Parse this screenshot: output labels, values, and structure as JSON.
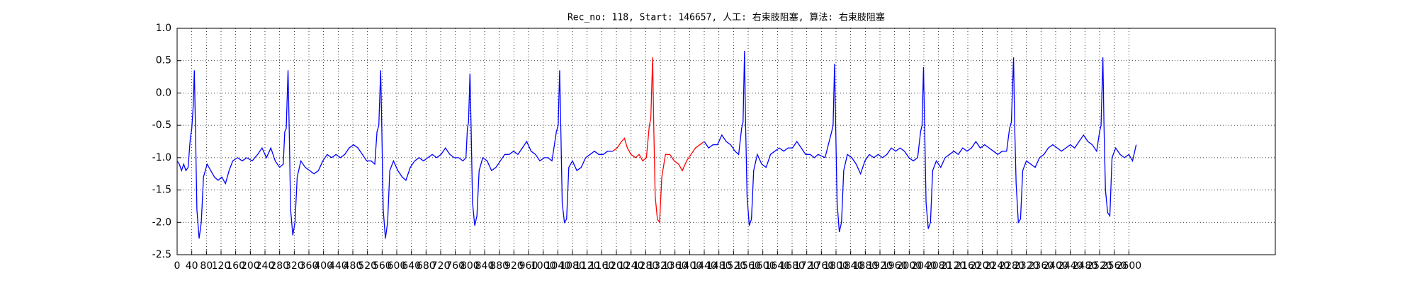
{
  "chart_data": {
    "type": "line",
    "title": "Rec_no: 118, Start: 146657, 人工: 右束肢阻塞, 算法: 右束肢阻塞",
    "xlim": [
      0,
      3000
    ],
    "xticks": [
      0,
      40,
      80,
      120,
      160,
      200,
      240,
      280,
      320,
      360,
      400,
      440,
      480,
      520,
      560,
      600,
      640,
      680,
      720,
      760,
      800,
      840,
      880,
      920,
      960,
      1000,
      1040,
      1080,
      1120,
      1160,
      1200,
      1240,
      1280,
      1320,
      1360,
      1400,
      1440,
      1480,
      1520,
      1560,
      1600,
      1640,
      1680,
      1720,
      1760,
      1800,
      1840,
      1880,
      1920,
      1960,
      2000,
      2040,
      2080,
      2120,
      2160,
      2200,
      2240,
      2280,
      2320,
      2360,
      2400,
      2440,
      2480,
      2520,
      2560,
      2600
    ],
    "ylim": [
      -2.5,
      1.0
    ],
    "yticks": [
      {
        "value": -2.5,
        "label": "-2.5"
      },
      {
        "value": -2,
        "label": "-2.0"
      },
      -1.5,
      {
        "value": -1,
        "label": "-1.0"
      },
      -0.5,
      {
        "value": 0,
        "label": "0.0"
      },
      0.5,
      {
        "value": 1,
        "label": "1.0"
      }
    ],
    "grid": true,
    "series": [
      {
        "color": "#0000ff",
        "x": [
          0,
          6,
          12,
          18,
          24,
          30,
          36,
          40,
          44,
          47,
          50,
          54,
          60,
          66,
          72,
          82,
          92,
          102,
          112,
          122,
          132,
          142,
          152,
          165,
          178,
          190,
          205,
          220,
          232,
          244,
          256,
          268,
          280,
          290,
          294,
          298,
          303,
          306,
          310,
          316,
          322,
          328,
          338,
          350,
          362,
          374,
          386,
          398,
          410,
          422,
          434,
          446,
          458,
          470,
          482,
          494,
          506,
          518,
          530,
          540,
          546,
          551,
          556,
          559,
          563,
          569,
          575,
          581,
          591,
          603,
          615,
          625,
          637,
          649,
          661,
          673,
          685,
          697,
          709,
          721,
          733,
          745,
          757,
          769,
          781,
          789,
          793,
          796,
          800,
          803,
          807,
          813,
          819,
          825,
          835,
          847,
          859,
          871,
          883,
          895,
          907,
          919,
          931,
          943,
          955,
          967,
          979,
          991,
          1003,
          1013,
          1024,
          1036,
          1041,
          1045,
          1048,
          1052,
          1058,
          1064,
          1070,
          1080,
          1092,
          1104,
          1116,
          1128,
          1140,
          1152,
          1164,
          1176,
          1190
        ],
        "values": [
          -1.05,
          -1.1,
          -1.2,
          -1.1,
          -1.2,
          -1.15,
          -0.7,
          -0.55,
          -0.2,
          0.35,
          -0.5,
          -1.8,
          -2.25,
          -2.0,
          -1.3,
          -1.1,
          -1.2,
          -1.3,
          -1.35,
          -1.3,
          -1.4,
          -1.2,
          -1.05,
          -1.0,
          -1.05,
          -1.0,
          -1.05,
          -0.95,
          -0.85,
          -1.0,
          -0.85,
          -1.05,
          -1.15,
          -1.1,
          -0.6,
          -0.55,
          0.35,
          -0.5,
          -1.8,
          -2.2,
          -2.0,
          -1.3,
          -1.05,
          -1.15,
          -1.2,
          -1.25,
          -1.2,
          -1.05,
          -0.95,
          -1.0,
          -0.95,
          -1.0,
          -0.95,
          -0.85,
          -0.8,
          -0.85,
          -0.95,
          -1.05,
          -1.05,
          -1.1,
          -0.6,
          -0.5,
          0.35,
          -0.5,
          -1.8,
          -2.25,
          -2.0,
          -1.2,
          -1.05,
          -1.2,
          -1.3,
          -1.35,
          -1.15,
          -1.05,
          -1.0,
          -1.05,
          -1.0,
          -0.95,
          -1.0,
          -0.95,
          -0.85,
          -0.95,
          -1.0,
          -1.0,
          -1.05,
          -1.0,
          -0.55,
          -0.45,
          0.3,
          -0.5,
          -1.7,
          -2.05,
          -1.9,
          -1.2,
          -1.0,
          -1.05,
          -1.2,
          -1.15,
          -1.05,
          -0.95,
          -0.95,
          -0.9,
          -0.95,
          -0.85,
          -0.75,
          -0.9,
          -0.95,
          -1.05,
          -1.0,
          -1.0,
          -1.05,
          -0.6,
          -0.5,
          0.35,
          -0.5,
          -1.7,
          -2.0,
          -1.95,
          -1.15,
          -1.05,
          -1.2,
          -1.15,
          -1.0,
          -0.95,
          -0.9,
          -0.95,
          -0.95,
          -0.9,
          -0.9
        ]
      },
      {
        "color": "#ff0000",
        "x": [
          1190,
          1202,
          1214,
          1222,
          1230,
          1240,
          1252,
          1262,
          1272,
          1282,
          1290,
          1294,
          1299,
          1302,
          1306,
          1312,
          1318,
          1324,
          1334,
          1346,
          1358,
          1370,
          1380,
          1392,
          1404,
          1416,
          1428,
          1440
        ],
        "values": [
          -0.9,
          -0.85,
          -0.75,
          -0.7,
          -0.85,
          -0.95,
          -1.0,
          -0.95,
          -1.05,
          -1.0,
          -0.5,
          -0.4,
          0.55,
          -0.5,
          -1.6,
          -1.95,
          -2.0,
          -1.3,
          -0.95,
          -0.95,
          -1.05,
          -1.1,
          -1.2,
          -1.05,
          -0.95,
          -0.85,
          -0.8,
          -0.75
        ]
      },
      {
        "color": "#0000ff",
        "x": [
          1440,
          1452,
          1464,
          1476,
          1488,
          1500,
          1512,
          1524,
          1534,
          1542,
          1546,
          1550,
          1553,
          1557,
          1563,
          1569,
          1575,
          1585,
          1597,
          1609,
          1621,
          1633,
          1645,
          1657,
          1669,
          1681,
          1693,
          1705,
          1717,
          1729,
          1741,
          1751,
          1770,
          1788,
          1792,
          1796,
          1799,
          1803,
          1809,
          1815,
          1821,
          1831,
          1843,
          1855,
          1867,
          1879,
          1891,
          1903,
          1915,
          1927,
          1939,
          1951,
          1963,
          1975,
          1987,
          1999,
          2011,
          2023,
          2031,
          2035,
          2039,
          2042,
          2046,
          2052,
          2058,
          2064,
          2074,
          2086,
          2098,
          2110,
          2122,
          2134,
          2146,
          2158,
          2170,
          2182,
          2194,
          2206,
          2218,
          2230,
          2242,
          2254,
          2266,
          2274,
          2279,
          2285,
          2288,
          2292,
          2298,
          2304,
          2310,
          2320,
          2332,
          2344,
          2356,
          2368,
          2380,
          2392,
          2404,
          2416,
          2428,
          2440,
          2452,
          2464,
          2476,
          2488,
          2500,
          2512,
          2520,
          2524,
          2529,
          2532,
          2536,
          2542,
          2548,
          2554,
          2564,
          2576,
          2588,
          2600,
          2610,
          2620
        ],
        "values": [
          -0.75,
          -0.85,
          -0.8,
          -0.8,
          -0.65,
          -0.75,
          -0.8,
          -0.9,
          -0.95,
          -0.55,
          -0.45,
          0.65,
          -0.5,
          -1.6,
          -2.05,
          -1.95,
          -1.2,
          -0.95,
          -1.1,
          -1.15,
          -0.95,
          -0.9,
          -0.85,
          -0.9,
          -0.85,
          -0.85,
          -0.75,
          -0.85,
          -0.95,
          -0.95,
          -1.0,
          -0.95,
          -1.0,
          -0.6,
          -0.5,
          0.45,
          -0.5,
          -1.7,
          -2.15,
          -2.0,
          -1.2,
          -0.95,
          -1.0,
          -1.1,
          -1.25,
          -1.05,
          -0.95,
          -1.0,
          -0.95,
          -1.0,
          -0.95,
          -0.85,
          -0.9,
          -0.85,
          -0.9,
          -1.0,
          -1.05,
          -1.0,
          -0.6,
          -0.5,
          0.4,
          -0.5,
          -1.7,
          -2.1,
          -2.0,
          -1.2,
          -1.05,
          -1.15,
          -1.0,
          -0.95,
          -0.9,
          -0.95,
          -0.85,
          -0.9,
          -0.85,
          -0.75,
          -0.85,
          -0.8,
          -0.85,
          -0.9,
          -0.95,
          -0.9,
          -0.9,
          -0.55,
          -0.45,
          0.55,
          -0.5,
          -1.4,
          -2.0,
          -1.95,
          -1.2,
          -1.05,
          -1.1,
          -1.15,
          -1.0,
          -0.95,
          -0.85,
          -0.8,
          -0.85,
          -0.9,
          -0.85,
          -0.8,
          -0.85,
          -0.75,
          -0.65,
          -0.75,
          -0.8,
          -0.9,
          -0.6,
          -0.5,
          0.55,
          -0.5,
          -1.5,
          -1.85,
          -1.9,
          -1.0,
          -0.85,
          -0.95,
          -1.0,
          -0.95,
          -1.05,
          -0.8
        ]
      }
    ]
  }
}
